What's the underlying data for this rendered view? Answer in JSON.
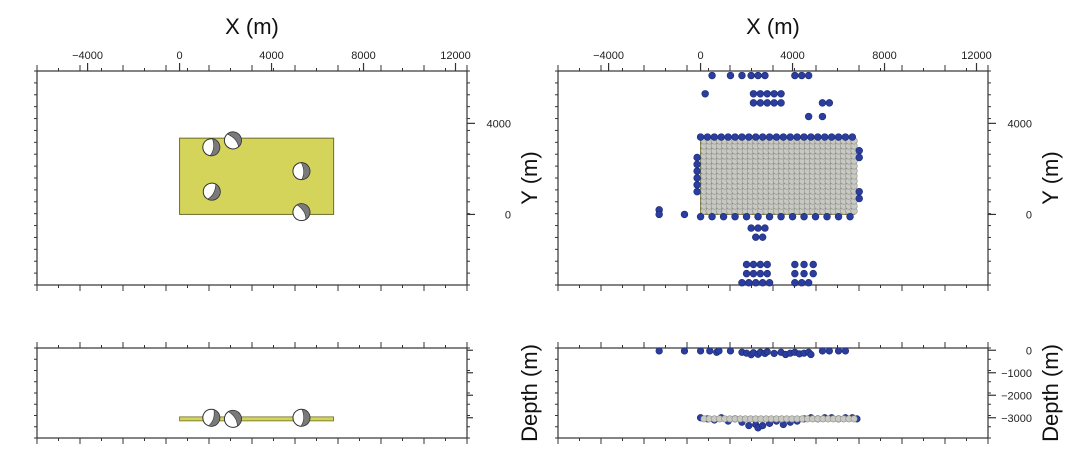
{
  "colors": {
    "frame": "#333333",
    "plane_fill": "#d4d45a",
    "plane_edge": "#6e6e2a",
    "station_blue": "#2b3ea0",
    "station_blue_edge": "#1c2a70",
    "grid_gray": "#c9c9c4",
    "grid_gray_edge": "#8f8f8a",
    "beachball_white": "#ffffff",
    "beachball_shade": "#7a7a7a"
  },
  "chart_data": [
    {
      "type": "scatter",
      "panel": "map-left",
      "xlabel": "X (m)",
      "ylabel": "",
      "xlim": [
        -6200,
        12500
      ],
      "ylim": [
        -3100,
        6300
      ],
      "x_ticks": [
        -4000,
        0,
        4000,
        8000,
        12000
      ],
      "y_ticks": [
        0,
        4000
      ],
      "fault_plane": {
        "x0": 0,
        "x1": 6700,
        "y0": 0,
        "y1": 3350
      },
      "events": [
        {
          "x": 1380,
          "y": 2950,
          "kind": "beachball"
        },
        {
          "x": 2320,
          "y": 3250,
          "kind": "beachball"
        },
        {
          "x": 5300,
          "y": 1900,
          "kind": "beachball"
        },
        {
          "x": 1400,
          "y": 1000,
          "kind": "beachball"
        },
        {
          "x": 5300,
          "y": 100,
          "kind": "beachball"
        }
      ]
    },
    {
      "type": "scatter",
      "panel": "map-right",
      "xlabel": "X (m)",
      "ylabel": "Y (m)",
      "xlim": [
        -6200,
        12500
      ],
      "ylim": [
        -3100,
        6300
      ],
      "x_ticks": [
        -4000,
        0,
        4000,
        8000,
        12000
      ],
      "y_ticks": [
        0,
        4000
      ],
      "fault_plane": {
        "x0": 0,
        "x1": 6700,
        "y0": 0,
        "y1": 3350
      },
      "grid_nodes": {
        "x_start": 150,
        "x_step": 225,
        "x_count": 30,
        "y_start": 150,
        "y_step": 220,
        "y_count": 15
      },
      "blue_stations": [
        [
          500,
          6100
        ],
        [
          1300,
          6100
        ],
        [
          1800,
          6100
        ],
        [
          2200,
          6100
        ],
        [
          2500,
          6100
        ],
        [
          2800,
          6100
        ],
        [
          4100,
          6100
        ],
        [
          4400,
          6100
        ],
        [
          4700,
          6100
        ],
        [
          200,
          5300
        ],
        [
          2300,
          5300
        ],
        [
          2600,
          5300
        ],
        [
          2900,
          5300
        ],
        [
          3200,
          5300
        ],
        [
          3500,
          5300
        ],
        [
          2300,
          4900
        ],
        [
          2600,
          4900
        ],
        [
          2900,
          4900
        ],
        [
          3200,
          4900
        ],
        [
          3500,
          4900
        ],
        [
          5300,
          4900
        ],
        [
          5600,
          4900
        ],
        [
          4700,
          4300
        ],
        [
          5300,
          4300
        ],
        [
          0,
          3400
        ],
        [
          300,
          3400
        ],
        [
          600,
          3400
        ],
        [
          900,
          3400
        ],
        [
          1200,
          3400
        ],
        [
          1500,
          3400
        ],
        [
          1800,
          3400
        ],
        [
          2100,
          3400
        ],
        [
          2400,
          3400
        ],
        [
          2700,
          3400
        ],
        [
          3000,
          3400
        ],
        [
          3300,
          3400
        ],
        [
          3600,
          3400
        ],
        [
          3900,
          3400
        ],
        [
          4200,
          3400
        ],
        [
          4500,
          3400
        ],
        [
          4800,
          3400
        ],
        [
          5100,
          3400
        ],
        [
          5400,
          3400
        ],
        [
          5700,
          3400
        ],
        [
          6000,
          3400
        ],
        [
          6300,
          3400
        ],
        [
          6600,
          3400
        ],
        [
          -150,
          2500
        ],
        [
          -150,
          2200
        ],
        [
          -150,
          1900
        ],
        [
          -150,
          1600
        ],
        [
          -150,
          1300
        ],
        [
          -150,
          1000
        ],
        [
          6900,
          2800
        ],
        [
          6900,
          2500
        ],
        [
          6900,
          1000
        ],
        [
          6900,
          700
        ],
        [
          -1800,
          200
        ],
        [
          -1800,
          0
        ],
        [
          -700,
          0
        ],
        [
          0,
          -100
        ],
        [
          500,
          -100
        ],
        [
          1000,
          -100
        ],
        [
          1500,
          -100
        ],
        [
          2000,
          -100
        ],
        [
          2500,
          -100
        ],
        [
          3000,
          -100
        ],
        [
          3500,
          -100
        ],
        [
          4000,
          -100
        ],
        [
          4500,
          -100
        ],
        [
          5000,
          -100
        ],
        [
          5500,
          -100
        ],
        [
          6000,
          -100
        ],
        [
          6500,
          -100
        ],
        [
          2200,
          -600
        ],
        [
          2500,
          -600
        ],
        [
          2800,
          -600
        ],
        [
          2400,
          -1000
        ],
        [
          2700,
          -1000
        ],
        [
          2000,
          -2200
        ],
        [
          2300,
          -2200
        ],
        [
          2600,
          -2200
        ],
        [
          2900,
          -2200
        ],
        [
          4100,
          -2200
        ],
        [
          4500,
          -2200
        ],
        [
          4900,
          -2200
        ],
        [
          2000,
          -2600
        ],
        [
          2300,
          -2600
        ],
        [
          2600,
          -2600
        ],
        [
          2900,
          -2600
        ],
        [
          4100,
          -2600
        ],
        [
          4500,
          -2600
        ],
        [
          4900,
          -2600
        ],
        [
          1800,
          -3000
        ],
        [
          2100,
          -3000
        ],
        [
          2400,
          -3000
        ],
        [
          2700,
          -3000
        ],
        [
          3000,
          -3000
        ],
        [
          4100,
          -3000
        ],
        [
          4400,
          -3000
        ],
        [
          4700,
          -3000
        ]
      ]
    },
    {
      "type": "scatter",
      "panel": "depth-left",
      "xlabel": "",
      "ylabel": "",
      "xlim": [
        -6200,
        12500
      ],
      "ylim": [
        -3900,
        100
      ],
      "y_ticks": [
        0,
        -1000,
        -2000,
        -3000
      ],
      "plane_depth": -3050,
      "plane_x": [
        0,
        6700
      ],
      "events": [
        {
          "x": 1380,
          "depth": -3000
        },
        {
          "x": 2320,
          "depth": -3050
        },
        {
          "x": 5300,
          "depth": -3000
        }
      ]
    },
    {
      "type": "scatter",
      "panel": "depth-right",
      "xlabel": "",
      "ylabel": "Depth (m)",
      "xlim": [
        -6200,
        12500
      ],
      "ylim": [
        -3900,
        100
      ],
      "y_ticks": [
        0,
        -1000,
        -2000,
        -3000
      ],
      "tick_labels": [
        "0",
        "−1000",
        "−2000",
        "−3000"
      ],
      "plane_depth": -3050,
      "plane_x": [
        0,
        6700
      ],
      "blue_stations_surface": [
        [
          -1800,
          -30
        ],
        [
          -700,
          -30
        ],
        [
          0,
          -30
        ],
        [
          400,
          -30
        ],
        [
          700,
          -90
        ],
        [
          800,
          -30
        ],
        [
          1300,
          -30
        ],
        [
          1800,
          -90
        ],
        [
          2000,
          -130
        ],
        [
          2200,
          -200
        ],
        [
          2300,
          -110
        ],
        [
          2500,
          -180
        ],
        [
          2600,
          -90
        ],
        [
          2800,
          -140
        ],
        [
          2900,
          -70
        ],
        [
          3200,
          -140
        ],
        [
          3500,
          -90
        ],
        [
          3700,
          -190
        ],
        [
          3900,
          -130
        ],
        [
          4100,
          -90
        ],
        [
          4300,
          -160
        ],
        [
          4500,
          -130
        ],
        [
          4700,
          -90
        ],
        [
          4800,
          -190
        ],
        [
          5300,
          -30
        ],
        [
          5600,
          -30
        ],
        [
          6000,
          -30
        ],
        [
          6300,
          -30
        ]
      ],
      "blue_stations_deep": [
        [
          0,
          -3000
        ],
        [
          300,
          -3050
        ],
        [
          600,
          -3100
        ],
        [
          900,
          -3000
        ],
        [
          1200,
          -3150
        ],
        [
          1500,
          -3050
        ],
        [
          1800,
          -3200
        ],
        [
          2100,
          -3350
        ],
        [
          2400,
          -3300
        ],
        [
          2500,
          -3450
        ],
        [
          2700,
          -3350
        ],
        [
          3000,
          -3250
        ],
        [
          3300,
          -3150
        ],
        [
          3600,
          -3300
        ],
        [
          3900,
          -3200
        ],
        [
          4200,
          -3150
        ],
        [
          4500,
          -3050
        ],
        [
          4800,
          -3000
        ],
        [
          5100,
          -3050
        ],
        [
          5400,
          -3000
        ],
        [
          5700,
          -3000
        ],
        [
          6000,
          -3050
        ],
        [
          6300,
          -3000
        ],
        [
          6600,
          -3000
        ],
        [
          6800,
          -3050
        ]
      ],
      "gray_nodes_depth": -3050
    }
  ]
}
